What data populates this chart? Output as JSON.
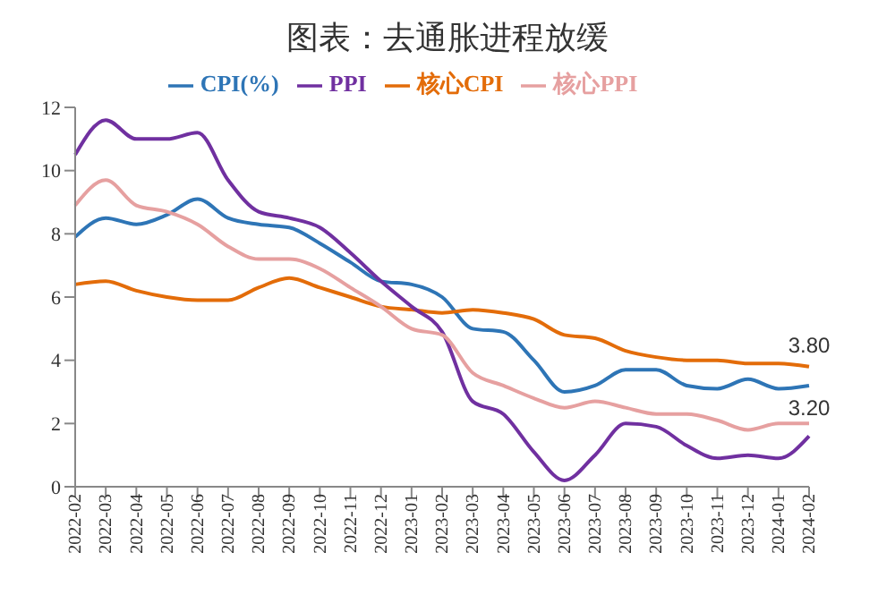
{
  "chart_data": {
    "type": "line",
    "title": "图表：去通胀进程放缓",
    "categories": [
      "2022-02",
      "2022-03",
      "2022-04",
      "2022-05",
      "2022-06",
      "2022-07",
      "2022-08",
      "2022-09",
      "2022-10",
      "2022-11",
      "2022-12",
      "2023-01",
      "2023-02",
      "2023-03",
      "2023-04",
      "2023-05",
      "2023-06",
      "2023-07",
      "2023-08",
      "2023-09",
      "2023-10",
      "2023-11",
      "2023-12",
      "2024-01",
      "2024-02"
    ],
    "series": [
      {
        "name": "CPI(%)",
        "color": "#2e75b6",
        "values": [
          7.9,
          8.5,
          8.3,
          8.6,
          9.1,
          8.5,
          8.3,
          8.2,
          7.7,
          7.1,
          6.5,
          6.4,
          6.0,
          5.0,
          4.9,
          4.0,
          3.0,
          3.2,
          3.7,
          3.7,
          3.2,
          3.1,
          3.4,
          3.1,
          3.2
        ]
      },
      {
        "name": "核心CPI",
        "color": "#e36c09",
        "values": [
          6.4,
          6.5,
          6.2,
          6.0,
          5.9,
          5.9,
          6.3,
          6.6,
          6.3,
          6.0,
          5.7,
          5.6,
          5.5,
          5.6,
          5.5,
          5.3,
          4.8,
          4.7,
          4.3,
          4.1,
          4.0,
          4.0,
          3.9,
          3.9,
          3.8
        ]
      },
      {
        "name": "PPI",
        "color": "#7030a0",
        "values": [
          10.5,
          11.6,
          11.0,
          11.0,
          11.2,
          9.7,
          8.7,
          8.5,
          8.2,
          7.4,
          6.5,
          5.7,
          4.9,
          2.7,
          2.3,
          1.1,
          0.2,
          1.0,
          2.0,
          1.9,
          1.3,
          0.9,
          1.0,
          0.9,
          1.6
        ]
      },
      {
        "name": "核心PPI",
        "color": "#e6a0a0",
        "values": [
          8.9,
          9.7,
          8.9,
          8.7,
          8.3,
          7.6,
          7.2,
          7.2,
          6.9,
          6.3,
          5.7,
          5.0,
          4.8,
          3.6,
          3.2,
          2.8,
          2.5,
          2.7,
          2.5,
          2.3,
          2.3,
          2.1,
          1.8,
          2.0,
          2.0
        ]
      }
    ],
    "ylim": [
      0,
      12
    ],
    "yticks": [
      0,
      2,
      4,
      6,
      8,
      10,
      12
    ],
    "grid": false,
    "legend": "top",
    "marker": "none",
    "line_style": "solid",
    "annotations": [
      {
        "text": "3.80",
        "x": "2024-02",
        "y": 3.8
      },
      {
        "text": "3.20",
        "x": "2024-02",
        "y": 3.2
      }
    ]
  }
}
